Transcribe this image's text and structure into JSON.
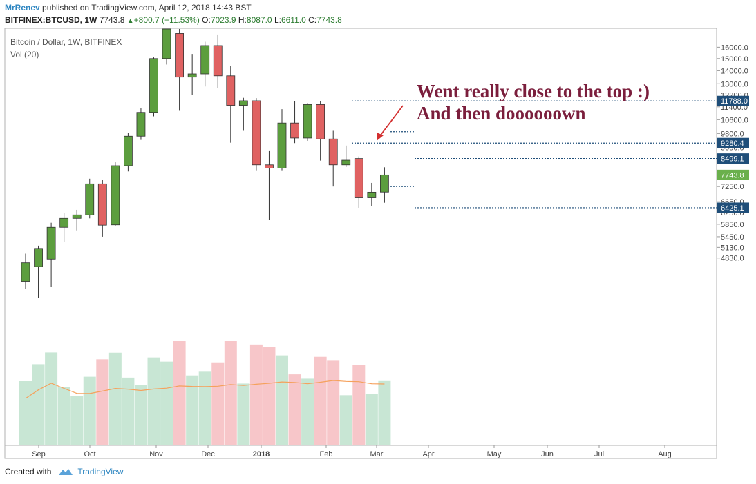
{
  "header": {
    "author": "MrRenev",
    "published_text": "published on TradingView.com, April 12, 2018 14:43 BST",
    "symbol": "BITFINEX:BTCUSD, 1W",
    "last": "7743.8",
    "change": "+800.7 (+11.53%)",
    "o_label": "O:",
    "o_value": "7023.9",
    "h_label": "H:",
    "h_value": "8087.0",
    "l_label": "L:",
    "l_value": "6611.0",
    "c_label": "C:",
    "c_value": "7743.8"
  },
  "legend": {
    "title": "Bitcoin / Dollar, 1W, BITFINEX",
    "volume": "Vol (20)"
  },
  "annotation": {
    "line1": "Went really close to the top :)",
    "line2": "And then doooooown"
  },
  "footer": {
    "created_with": "Created with",
    "brand": "TradingView"
  },
  "colors": {
    "up": "#5c9e3e",
    "down": "#e06262",
    "vol_up": "#c8e6d4",
    "vol_down": "#f7c6c9",
    "ma": "#f5a15c",
    "level": "#1f4e79",
    "last": "#6ab04c",
    "annotation": "#7b1e3c",
    "arrow": "#d32f2f"
  },
  "chart_data": {
    "type": "candlestick",
    "interval": "1W",
    "y_axis": {
      "scale": "log",
      "ticks": [
        "16000.0",
        "15000.0",
        "14000.0",
        "13000.0",
        "12200.0",
        "11400.0",
        "10600.0",
        "9800.0",
        "9050.0",
        "7850.0",
        "7250.0",
        "6650.0",
        "6250.0",
        "5850.0",
        "5450.0",
        "5130.0",
        "4830.0"
      ]
    },
    "x_axis": {
      "labels": [
        "Sep",
        "Oct",
        "Nov",
        "Dec",
        "2018",
        "Feb",
        "Mar",
        "Apr",
        "May",
        "Jun",
        "Jul",
        "Aug"
      ]
    },
    "candles": [
      {
        "o": 4230,
        "h": 4950,
        "l": 4050,
        "c": 4700
      },
      {
        "o": 4600,
        "h": 5180,
        "l": 3850,
        "c": 5100
      },
      {
        "o": 4800,
        "h": 5900,
        "l": 4100,
        "c": 5750
      },
      {
        "o": 5750,
        "h": 6250,
        "l": 5280,
        "c": 6050
      },
      {
        "o": 6050,
        "h": 6350,
        "l": 5650,
        "c": 6170
      },
      {
        "o": 6170,
        "h": 7580,
        "l": 6050,
        "c": 7360
      },
      {
        "o": 7360,
        "h": 7540,
        "l": 5450,
        "c": 5820
      },
      {
        "o": 5830,
        "h": 8320,
        "l": 5790,
        "c": 8160
      },
      {
        "o": 8160,
        "h": 9850,
        "l": 7900,
        "c": 9650
      },
      {
        "o": 9650,
        "h": 11300,
        "l": 9450,
        "c": 11050
      },
      {
        "o": 11050,
        "h": 15100,
        "l": 10800,
        "c": 15000
      },
      {
        "o": 15000,
        "h": 19800,
        "l": 14500,
        "c": 18000
      },
      {
        "o": 17300,
        "h": 19600,
        "l": 11150,
        "c": 13500
      },
      {
        "o": 13500,
        "h": 15400,
        "l": 12200,
        "c": 13750
      },
      {
        "o": 13750,
        "h": 16500,
        "l": 12800,
        "c": 16150
      },
      {
        "o": 16150,
        "h": 17200,
        "l": 12700,
        "c": 13600
      },
      {
        "o": 13600,
        "h": 14400,
        "l": 9300,
        "c": 11500
      },
      {
        "o": 11500,
        "h": 12000,
        "l": 9950,
        "c": 11800
      },
      {
        "o": 11800,
        "h": 11980,
        "l": 7950,
        "c": 8200
      },
      {
        "o": 8200,
        "h": 8900,
        "l": 6000,
        "c": 8050
      },
      {
        "o": 8050,
        "h": 11250,
        "l": 7950,
        "c": 10400
      },
      {
        "o": 10400,
        "h": 11788,
        "l": 9280,
        "c": 9550
      },
      {
        "o": 9550,
        "h": 11650,
        "l": 9400,
        "c": 11550
      },
      {
        "o": 11550,
        "h": 11788,
        "l": 8400,
        "c": 9500
      },
      {
        "o": 9500,
        "h": 9950,
        "l": 7250,
        "c": 8200
      },
      {
        "o": 8200,
        "h": 9150,
        "l": 8100,
        "c": 8420
      },
      {
        "o": 8499,
        "h": 8600,
        "l": 6425,
        "c": 6800
      },
      {
        "o": 6800,
        "h": 7400,
        "l": 6500,
        "c": 7020
      },
      {
        "o": 7023.9,
        "h": 8087,
        "l": 6611,
        "c": 7743.8
      }
    ],
    "volume_ma_period": 20,
    "levels": [
      {
        "label": "11788.0",
        "value": 11788.0
      },
      {
        "label": "9280.4",
        "value": 9280.4
      },
      {
        "label": "8499.1",
        "value": 8499.1
      },
      {
        "label": "6425.1",
        "value": 6425.1
      }
    ],
    "last_price": {
      "label": "7743.8",
      "value": 7743.8
    }
  }
}
